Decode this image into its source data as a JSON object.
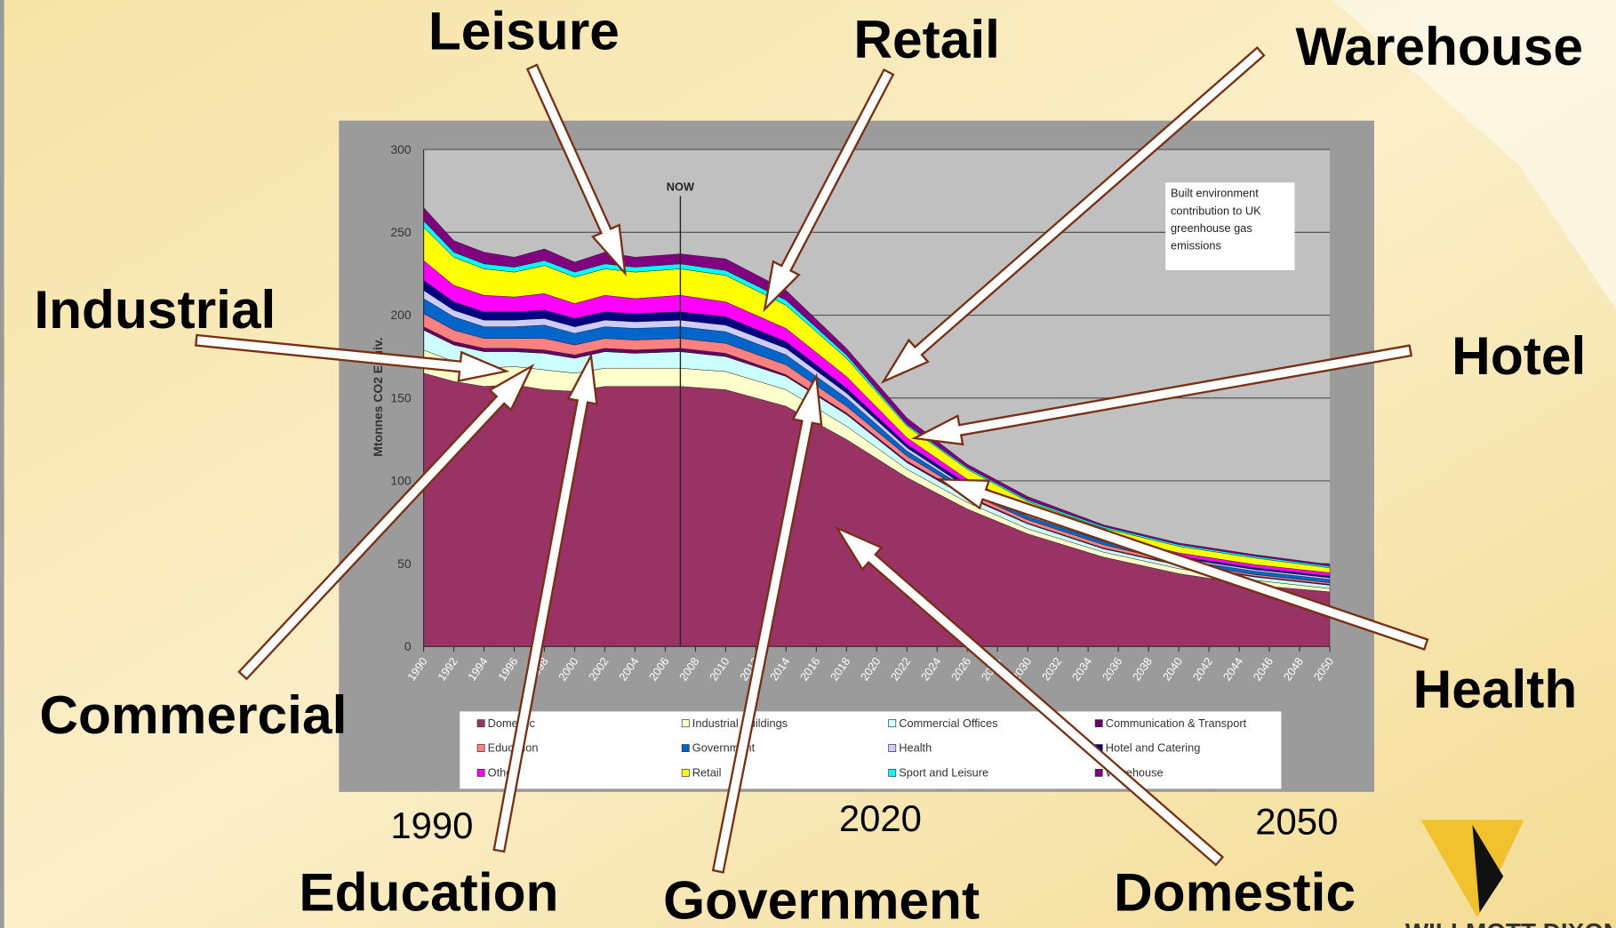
{
  "chart_data": {
    "type": "stacked_area",
    "y_label": "Mtonnes CO2 Equiv.",
    "note": "Built environment contribution to UK greenhouse gas emissions",
    "marker": {
      "label": "NOW",
      "x": 2007
    },
    "x": [
      1990,
      1992,
      1994,
      1996,
      1998,
      2000,
      2002,
      2004,
      2007,
      2010,
      2014,
      2018,
      2022,
      2026,
      2030,
      2035,
      2040,
      2045,
      2050
    ],
    "series": [
      {
        "name": "Domestic",
        "color": "#993366",
        "values": [
          165,
          160,
          157,
          158,
          155,
          154,
          157,
          157,
          157,
          155,
          145,
          125,
          102,
          83,
          68,
          54,
          44,
          37,
          33
        ]
      },
      {
        "name": "Industrial Buildings",
        "color": "#ffffcc",
        "values": [
          14,
          12,
          11,
          11,
          12,
          11,
          11,
          11,
          11,
          11,
          10,
          8,
          5,
          4,
          3,
          3,
          3,
          3,
          2
        ]
      },
      {
        "name": "Commercial Offices",
        "color": "#ccffff",
        "values": [
          12,
          10,
          10,
          9,
          10,
          9,
          10,
          9,
          10,
          9,
          8,
          7,
          4,
          3,
          3,
          2,
          2,
          2,
          2
        ]
      },
      {
        "name": "Communication & Transport",
        "color": "#660066",
        "values": [
          2,
          2,
          2,
          2,
          2,
          2,
          2,
          2,
          2,
          2,
          1,
          1,
          1,
          1,
          0.5,
          0.5,
          0.5,
          0.5,
          0.5
        ]
      },
      {
        "name": "Education",
        "color": "#ff8080",
        "values": [
          8,
          7,
          6,
          6,
          7,
          6,
          6,
          6,
          6,
          6,
          6,
          4,
          3,
          2,
          2,
          2,
          1,
          1,
          1
        ]
      },
      {
        "name": "Government",
        "color": "#0066cc",
        "values": [
          9,
          8,
          7,
          7,
          8,
          7,
          7,
          7,
          7,
          7,
          6,
          5,
          3,
          2,
          2,
          2,
          2,
          2,
          2
        ]
      },
      {
        "name": "Health",
        "color": "#ccccff",
        "values": [
          5,
          4,
          4,
          4,
          4,
          4,
          4,
          4,
          4,
          4,
          4,
          3,
          2,
          1,
          1,
          1,
          1,
          1,
          1
        ]
      },
      {
        "name": "Hotel and Catering",
        "color": "#000080",
        "values": [
          6,
          5,
          5,
          5,
          5,
          5,
          5,
          5,
          5,
          5,
          4,
          3,
          2,
          2,
          1,
          1,
          1,
          1,
          1
        ]
      },
      {
        "name": "Other",
        "color": "#ff00ff",
        "values": [
          12,
          10,
          10,
          9,
          10,
          9,
          10,
          9,
          10,
          9,
          8,
          7,
          4,
          3,
          3,
          2,
          2,
          2,
          2
        ]
      },
      {
        "name": "Retail",
        "color": "#ffff00",
        "values": [
          20,
          17,
          16,
          15,
          17,
          16,
          16,
          16,
          16,
          16,
          14,
          11,
          7,
          6,
          4,
          4,
          4,
          4,
          3
        ]
      },
      {
        "name": "Sport and Leisure",
        "color": "#00ffff",
        "values": [
          4,
          3,
          3,
          3,
          3,
          3,
          3,
          3,
          3,
          3,
          3,
          2,
          1,
          1,
          1,
          1,
          1,
          1,
          1
        ]
      },
      {
        "name": "Warehouse",
        "color": "#800080",
        "values": [
          8,
          7,
          7,
          6,
          7,
          6,
          7,
          6,
          6,
          7,
          6,
          4,
          4,
          2,
          2,
          1,
          1,
          1,
          1
        ]
      }
    ],
    "xlim": [
      1990,
      2050
    ],
    "xticks": [
      1990,
      1992,
      1994,
      1996,
      1998,
      2000,
      2002,
      2004,
      2006,
      2008,
      2010,
      2012,
      2014,
      2016,
      2018,
      2020,
      2022,
      2024,
      2026,
      2028,
      2030,
      2032,
      2034,
      2036,
      2038,
      2040,
      2042,
      2044,
      2046,
      2048,
      2050
    ],
    "ylim": [
      0,
      300
    ],
    "yticks": [
      0,
      50,
      100,
      150,
      200,
      250,
      300
    ],
    "grid": true,
    "annotations": [
      "Leisure",
      "Retail",
      "Warehouse",
      "Industrial",
      "Hotel",
      "Commercial",
      "Health",
      "Education",
      "Government",
      "Domestic"
    ],
    "year_labels": [
      "1990",
      "2020",
      "2050"
    ],
    "logo": "WILLMOTT DIXON"
  }
}
